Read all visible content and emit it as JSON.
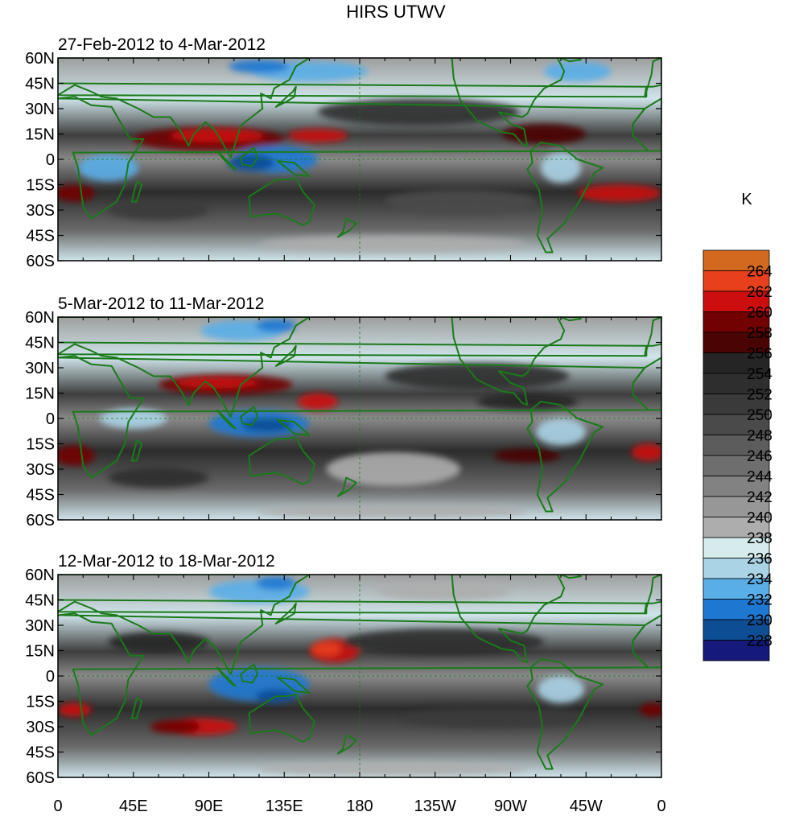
{
  "title": "HIRS UTWV",
  "unit_label": "K",
  "lat_ticks": [
    "60N",
    "45N",
    "30N",
    "15N",
    "0",
    "15S",
    "30S",
    "45S",
    "60S"
  ],
  "lon_ticks": [
    "0",
    "45E",
    "90E",
    "135E",
    "180",
    "135W",
    "90W",
    "45W",
    "0"
  ],
  "panels": [
    {
      "label": "27-Feb-2012 to 4-Mar-2012"
    },
    {
      "label": "5-Mar-2012 to 11-Mar-2012"
    },
    {
      "label": "12-Mar-2012 to 18-Mar-2012"
    }
  ],
  "colorbar": {
    "labels": [
      "264",
      "262",
      "260",
      "258",
      "256",
      "254",
      "252",
      "250",
      "248",
      "246",
      "244",
      "242",
      "240",
      "238",
      "236",
      "234",
      "232",
      "230",
      "228"
    ],
    "colors": [
      "#d2691e",
      "#e8401c",
      "#cc0e0e",
      "#720202",
      "#4a0404",
      "#252525",
      "#2e2e2e",
      "#3a3a3a",
      "#4a4a4a",
      "#5c5c5c",
      "#6e6e6e",
      "#828282",
      "#979797",
      "#adadad",
      "#d6ecec",
      "#aad3e6",
      "#5aaee8",
      "#1e78d2",
      "#0d4d94",
      "#14197a"
    ]
  },
  "map_data": {
    "projection": "cylindrical-equidistant",
    "lon_range": [
      0,
      360
    ],
    "lat_range": [
      -60,
      60
    ],
    "coastline_color": "#1a7a1a"
  }
}
